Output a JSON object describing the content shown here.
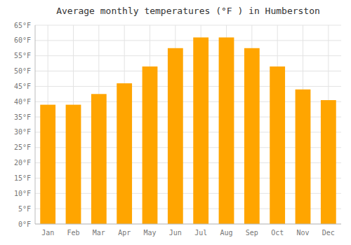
{
  "chart_data": {
    "type": "bar",
    "title": "Average monthly temperatures (°F ) in Humberston",
    "categories": [
      "Jan",
      "Feb",
      "Mar",
      "Apr",
      "May",
      "Jun",
      "Jul",
      "Aug",
      "Sep",
      "Oct",
      "Nov",
      "Dec"
    ],
    "values": [
      39,
      39,
      42.5,
      46,
      51.5,
      57.5,
      61,
      61,
      57.5,
      51.5,
      44,
      40.5
    ],
    "color": "#FFA500",
    "ylim": [
      0,
      65
    ],
    "yticks": [
      {
        "value": 0,
        "label": "0°F"
      },
      {
        "value": 5,
        "label": "5°F"
      },
      {
        "value": 10,
        "label": "10°F"
      },
      {
        "value": 15,
        "label": "15°F"
      },
      {
        "value": 20,
        "label": "20°F"
      },
      {
        "value": 25,
        "label": "25°F"
      },
      {
        "value": 30,
        "label": "30°F"
      },
      {
        "value": 35,
        "label": "35°F"
      },
      {
        "value": 40,
        "label": "40°F"
      },
      {
        "value": 45,
        "label": "45°F"
      },
      {
        "value": 50,
        "label": "50°F"
      },
      {
        "value": 55,
        "label": "55°F"
      },
      {
        "value": 60,
        "label": "60°F"
      },
      {
        "value": 65,
        "label": "65°F"
      }
    ],
    "grid": true
  }
}
